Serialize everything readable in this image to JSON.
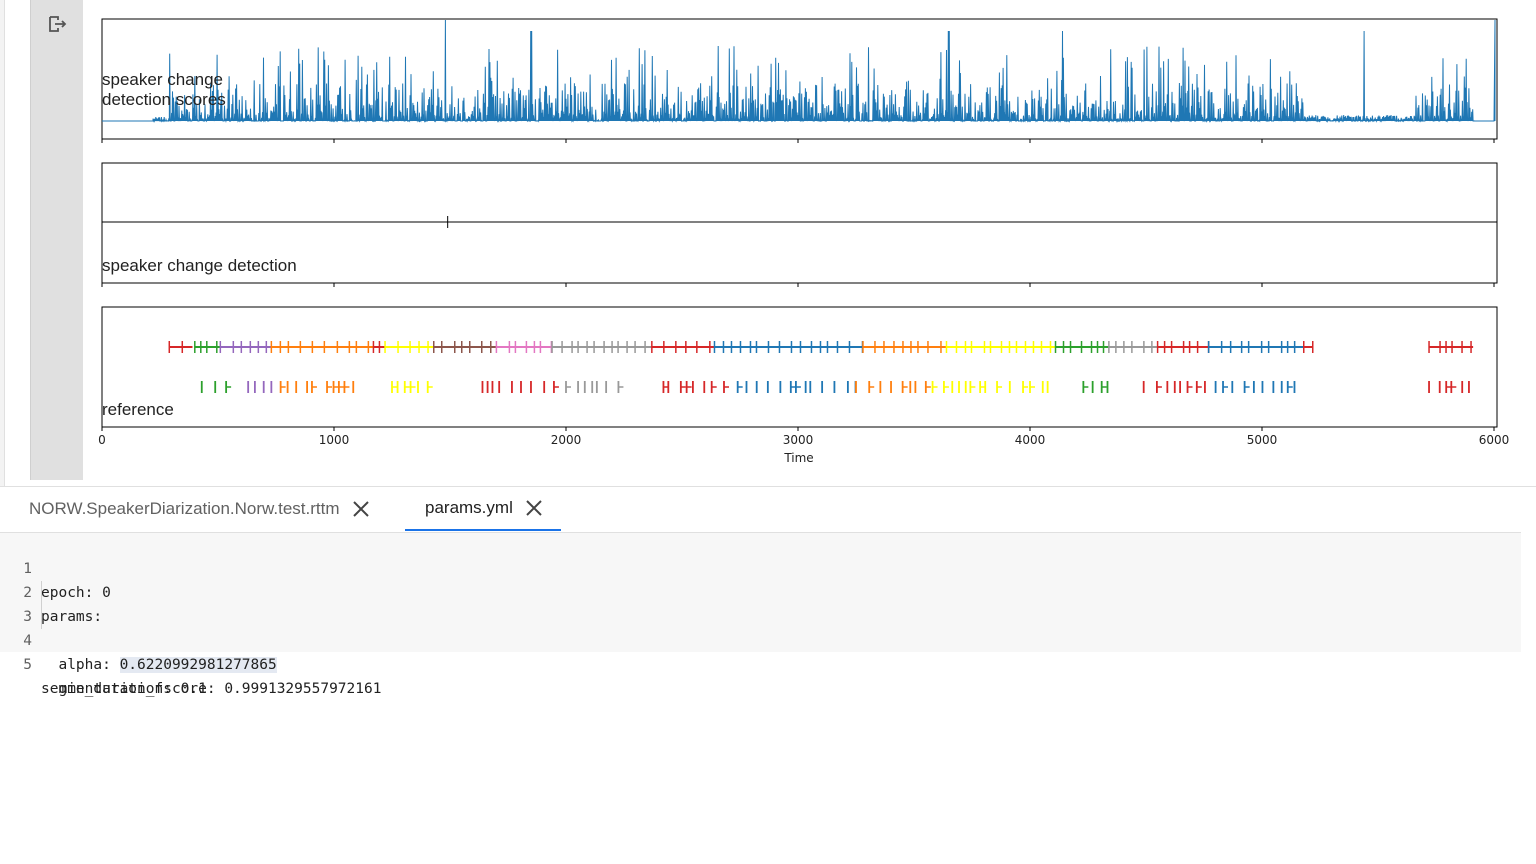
{
  "output": {
    "exit_icon": "exit-fullscreen-icon"
  },
  "chart_data": [
    {
      "type": "line",
      "ylabel": "speaker change\ndetection scores",
      "xlim": [
        0,
        6000
      ],
      "color": "#1f77b4",
      "spike_times": [
        1480,
        1850,
        3650,
        4140,
        5440,
        5920
      ],
      "note": ""
    },
    {
      "type": "line",
      "ylabel": "speaker change detection",
      "xlim": [
        0,
        6000
      ],
      "detections": [
        1490
      ]
    },
    {
      "type": "timeline",
      "ylabel": "reference",
      "xlabel": "Time",
      "xlim": [
        0,
        6000
      ],
      "xticks": [
        "0",
        "1000",
        "2000",
        "3000",
        "4000",
        "5000",
        "6000"
      ],
      "segments_row1": [
        {
          "from": 290,
          "to": 390,
          "color": "#d62728"
        },
        {
          "from": 400,
          "to": 510,
          "color": "#2ca02c"
        },
        {
          "from": 510,
          "to": 730,
          "color": "#9467bd"
        },
        {
          "from": 730,
          "to": 1170,
          "color": "#ff7f0e"
        },
        {
          "from": 1170,
          "to": 1220,
          "color": "#d62728"
        },
        {
          "from": 1220,
          "to": 1430,
          "color": "#ffff00"
        },
        {
          "from": 1430,
          "to": 1700,
          "color": "#8c564b"
        },
        {
          "from": 1700,
          "to": 1940,
          "color": "#e377c2"
        },
        {
          "from": 1940,
          "to": 2370,
          "color": "#999999"
        },
        {
          "from": 2370,
          "to": 2640,
          "color": "#d62728"
        },
        {
          "from": 2640,
          "to": 3280,
          "color": "#1f77b4"
        },
        {
          "from": 3280,
          "to": 3640,
          "color": "#ff7f0e"
        },
        {
          "from": 3640,
          "to": 4110,
          "color": "#ffff00"
        },
        {
          "from": 4110,
          "to": 4340,
          "color": "#2ca02c"
        },
        {
          "from": 4340,
          "to": 4550,
          "color": "#999999"
        },
        {
          "from": 4550,
          "to": 4770,
          "color": "#d62728"
        },
        {
          "from": 4770,
          "to": 5180,
          "color": "#1f77b4"
        },
        {
          "from": 5180,
          "to": 5220,
          "color": "#d62728"
        },
        {
          "from": 5720,
          "to": 5910,
          "color": "#d62728"
        }
      ],
      "segments_row2": [
        {
          "from": 430,
          "to": 540,
          "color": "#2ca02c"
        },
        {
          "from": 630,
          "to": 730,
          "color": "#9467bd"
        },
        {
          "from": 770,
          "to": 910,
          "color": "#ff7f0e"
        },
        {
          "from": 970,
          "to": 1120,
          "color": "#ff7f0e"
        },
        {
          "from": 1250,
          "to": 1440,
          "color": "#ffff00"
        },
        {
          "from": 1640,
          "to": 1960,
          "color": "#d62728"
        },
        {
          "from": 2000,
          "to": 2240,
          "color": "#999999"
        },
        {
          "from": 2420,
          "to": 2700,
          "color": "#d62728"
        },
        {
          "from": 2740,
          "to": 3260,
          "color": "#1f77b4"
        },
        {
          "from": 3250,
          "to": 3580,
          "color": "#ff7f0e"
        },
        {
          "from": 3580,
          "to": 4100,
          "color": "#ffff00"
        },
        {
          "from": 4230,
          "to": 4340,
          "color": "#2ca02c"
        },
        {
          "from": 4490,
          "to": 4780,
          "color": "#d62728"
        },
        {
          "from": 4800,
          "to": 5140,
          "color": "#1f77b4"
        },
        {
          "from": 5720,
          "to": 5910,
          "color": "#d62728"
        }
      ]
    }
  ],
  "tabs": [
    {
      "label": "NORW.SpeakerDiarization.Norw.test.rttm",
      "close_icon": "close-icon",
      "active": false
    },
    {
      "label": "params.yml",
      "close_icon": "close-icon",
      "active": true
    }
  ],
  "editor": {
    "lines": [
      {
        "num": "1",
        "text": "epoch: 0"
      },
      {
        "num": "2",
        "text": "params:"
      },
      {
        "num": "3",
        "text": "  alpha: ",
        "highlight": "0.6220992981277865"
      },
      {
        "num": "4",
        "text": "  min_duration: 0.1"
      },
      {
        "num": "5",
        "text": "segmentation_fscore: 0.9991329557972161"
      }
    ]
  }
}
